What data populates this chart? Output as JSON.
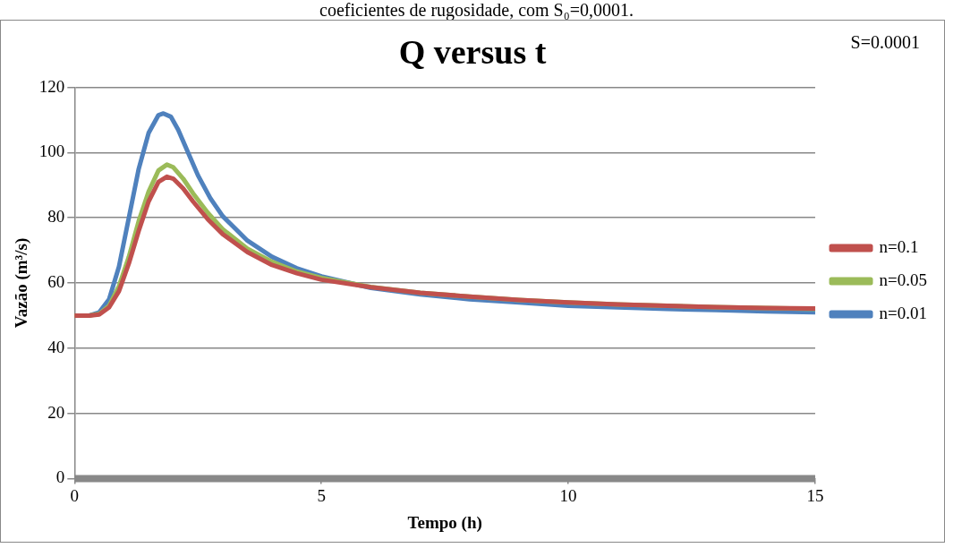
{
  "chart_data": {
    "type": "line",
    "title": "Q versus t",
    "xlabel": "Tempo (h)",
    "ylabel": "Vazão (m³/s)",
    "annotations": [
      "coeficientes de rugosidade, com S₀=0,0001.",
      "S=0.0001"
    ],
    "xlim": [
      0,
      15
    ],
    "xticks": [
      0,
      5,
      10,
      15
    ],
    "ylim": [
      0,
      120
    ],
    "yticks": [
      0,
      20,
      40,
      60,
      80,
      100,
      120
    ],
    "grid": "y",
    "legend": "right",
    "marker": "none",
    "line_style": "solid",
    "series": [
      {
        "name": "n=0.1",
        "color": "#c0504d",
        "x": [
          0,
          0.3,
          0.5,
          0.7,
          0.9,
          1.1,
          1.3,
          1.5,
          1.7,
          1.87,
          2,
          2.2,
          2.4,
          2.7,
          3,
          3.5,
          4,
          4.5,
          5,
          6,
          7,
          8,
          9,
          10,
          11,
          12,
          13,
          14,
          15
        ],
        "values": [
          50,
          50,
          50.3,
          52.5,
          57.5,
          66,
          76,
          85,
          91,
          92.6,
          92,
          89,
          85,
          79.5,
          75,
          69.5,
          65.5,
          63,
          61,
          58.7,
          57,
          55.8,
          54.8,
          54,
          53.4,
          53,
          52.6,
          52.3,
          52.2
        ]
      },
      {
        "name": "n=0.05",
        "color": "#9bbb59",
        "x": [
          0,
          0.3,
          0.5,
          0.7,
          0.9,
          1.1,
          1.3,
          1.5,
          1.7,
          1.87,
          2,
          2.2,
          2.4,
          2.7,
          3,
          3.5,
          4,
          4.5,
          5,
          6,
          7,
          8,
          9,
          10,
          11,
          12,
          13,
          14,
          15
        ],
        "values": [
          50,
          50,
          50.5,
          53,
          59,
          68,
          79,
          88,
          94.5,
          96.3,
          95.5,
          92,
          87.5,
          81.5,
          76.5,
          70.5,
          66.5,
          63.5,
          61.5,
          58.8,
          57,
          55.8,
          54.8,
          54,
          53.4,
          53,
          52.6,
          52.3,
          52
        ]
      },
      {
        "name": "n=0.01",
        "color": "#4f81bd",
        "x": [
          0,
          0.3,
          0.5,
          0.7,
          0.9,
          1.1,
          1.3,
          1.5,
          1.7,
          1.8,
          1.95,
          2.1,
          2.3,
          2.5,
          2.75,
          3,
          3.5,
          4,
          4.5,
          5,
          6,
          7,
          8,
          9,
          10,
          11,
          12,
          13,
          14,
          15
        ],
        "values": [
          50,
          50,
          51,
          55,
          65,
          80,
          95,
          106,
          111.5,
          112,
          111,
          107,
          100,
          93,
          86,
          80.5,
          73,
          68,
          64.5,
          62,
          58.5,
          56.5,
          55,
          54,
          53,
          52.5,
          52,
          51.7,
          51.3,
          51
        ]
      }
    ]
  }
}
